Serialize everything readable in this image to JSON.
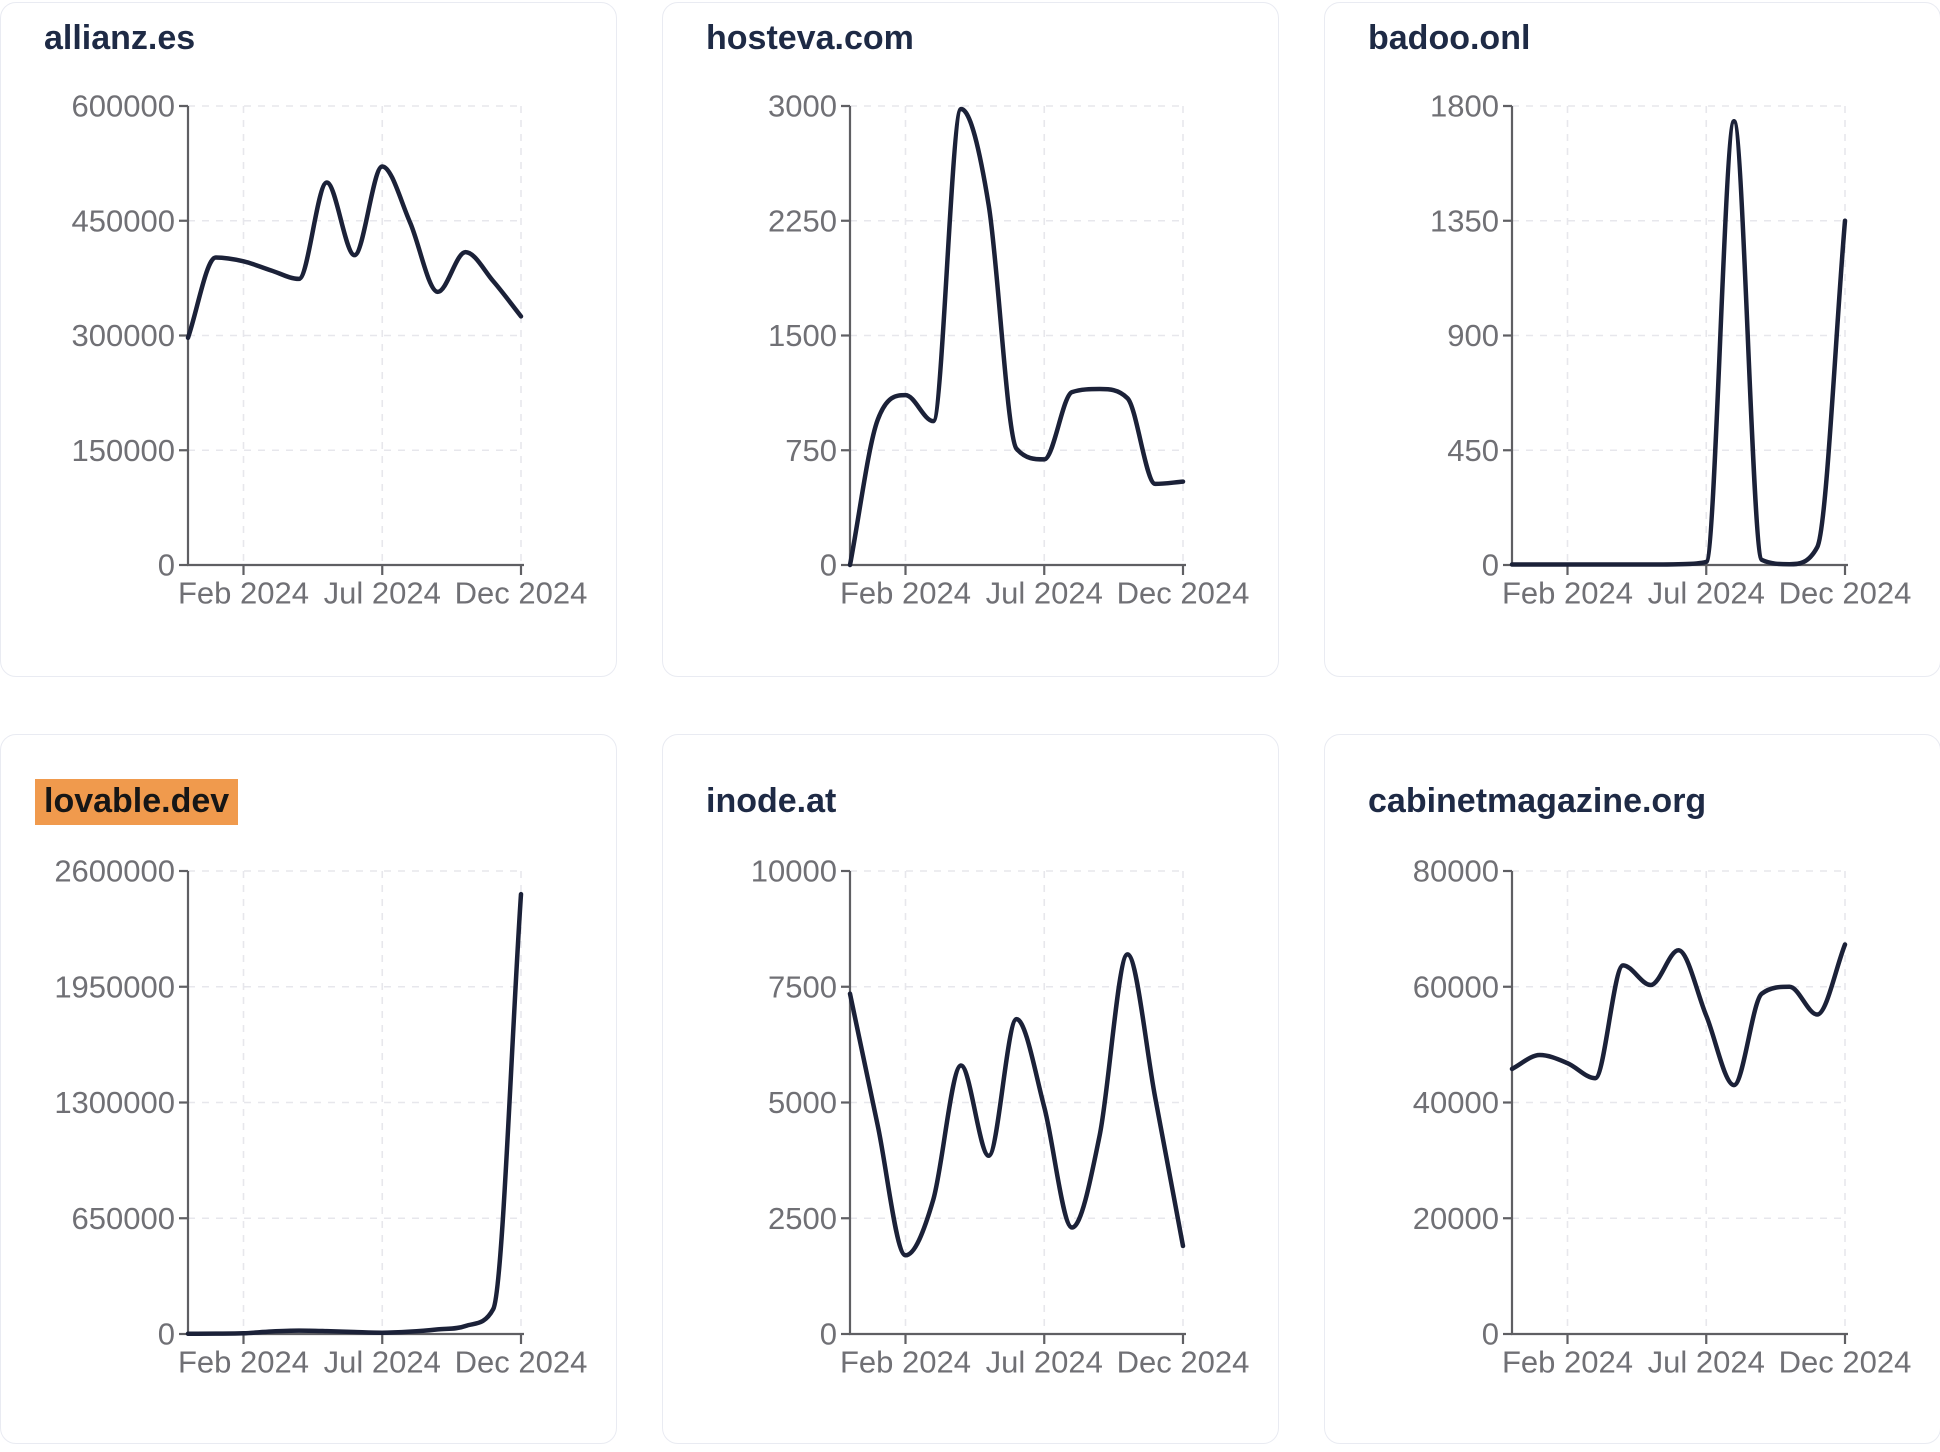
{
  "theme": {
    "background": "#ffffff",
    "card_border": "#e9ebf2",
    "title_color": "#1e2a45",
    "line_color": "#1b2138",
    "axis_color": "#5f5f63",
    "tick_label_color": "#707075",
    "grid_color": "#e7e7ec",
    "highlight_bg": "#f09a4d",
    "highlight_text": "#161616"
  },
  "chart_data": [
    {
      "type": "line",
      "title": "allianz.es",
      "highlighted": false,
      "x_months": [
        "Dec 2023",
        "Jan 2024",
        "Feb 2024",
        "Mar 2024",
        "Apr 2024",
        "May 2024",
        "Jun 2024",
        "Jul 2024",
        "Aug 2024",
        "Sep 2024",
        "Oct 2024",
        "Nov 2024",
        "Dec 2024"
      ],
      "values": [
        297000,
        402000,
        397000,
        385000,
        374000,
        500000,
        405000,
        521000,
        448000,
        357000,
        409000,
        371000,
        325000
      ],
      "ylim": [
        0,
        600000
      ],
      "y_ticks": [
        0,
        150000,
        300000,
        450000,
        600000
      ],
      "x_ticks": [
        {
          "label": "Feb 2024",
          "month_index": 2
        },
        {
          "label": "Jul 2024",
          "month_index": 7
        },
        {
          "label": "Dec 2024",
          "month_index": 12
        }
      ],
      "grid": "dashed",
      "legend": "none"
    },
    {
      "type": "line",
      "title": "hosteva.com",
      "highlighted": false,
      "x_months": [
        "Dec 2023",
        "Jan 2024",
        "Feb 2024",
        "Mar 2024",
        "Apr 2024",
        "May 2024",
        "Jun 2024",
        "Jul 2024",
        "Aug 2024",
        "Sep 2024",
        "Oct 2024",
        "Nov 2024",
        "Dec 2024"
      ],
      "values": [
        0,
        950,
        1110,
        940,
        2980,
        2350,
        760,
        690,
        1130,
        1150,
        1090,
        530,
        545
      ],
      "ylim": [
        0,
        3000
      ],
      "y_ticks": [
        0,
        750,
        1500,
        2250,
        3000
      ],
      "x_ticks": [
        {
          "label": "Feb 2024",
          "month_index": 2
        },
        {
          "label": "Jul 2024",
          "month_index": 7
        },
        {
          "label": "Dec 2024",
          "month_index": 12
        }
      ],
      "grid": "dashed",
      "legend": "none"
    },
    {
      "type": "line",
      "title": "badoo.onl",
      "highlighted": false,
      "x_months": [
        "Dec 2023",
        "Jan 2024",
        "Feb 2024",
        "Mar 2024",
        "Apr 2024",
        "May 2024",
        "Jun 2024",
        "Jul 2024",
        "Aug 2024",
        "Sep 2024",
        "Oct 2024",
        "Nov 2024",
        "Dec 2024"
      ],
      "values": [
        2,
        2,
        2,
        2,
        2,
        2,
        3,
        12,
        1740,
        20,
        3,
        70,
        1350
      ],
      "ylim": [
        0,
        1800
      ],
      "y_ticks": [
        0,
        450,
        900,
        1350,
        1800
      ],
      "x_ticks": [
        {
          "label": "Feb 2024",
          "month_index": 2
        },
        {
          "label": "Jul 2024",
          "month_index": 7
        },
        {
          "label": "Dec 2024",
          "month_index": 12
        }
      ],
      "grid": "dashed",
      "legend": "none"
    },
    {
      "type": "line",
      "title": "lovable.dev",
      "highlighted": true,
      "x_months": [
        "Dec 2023",
        "Jan 2024",
        "Feb 2024",
        "Mar 2024",
        "Apr 2024",
        "May 2024",
        "Jun 2024",
        "Jul 2024",
        "Aug 2024",
        "Sep 2024",
        "Oct 2024",
        "Nov 2024",
        "Dec 2024"
      ],
      "values": [
        1500,
        2000,
        4000,
        14000,
        19000,
        16000,
        11000,
        7000,
        13000,
        26000,
        45000,
        140000,
        2470000
      ],
      "ylim": [
        0,
        2600000
      ],
      "y_ticks": [
        0,
        650000,
        1300000,
        1950000,
        2600000
      ],
      "x_ticks": [
        {
          "label": "Feb 2024",
          "month_index": 2
        },
        {
          "label": "Jul 2024",
          "month_index": 7
        },
        {
          "label": "Dec 2024",
          "month_index": 12
        }
      ],
      "grid": "dashed",
      "legend": "none"
    },
    {
      "type": "line",
      "title": "inode.at",
      "highlighted": false,
      "x_months": [
        "Dec 2023",
        "Jan 2024",
        "Feb 2024",
        "Mar 2024",
        "Apr 2024",
        "May 2024",
        "Jun 2024",
        "Jul 2024",
        "Aug 2024",
        "Sep 2024",
        "Oct 2024",
        "Nov 2024",
        "Dec 2024"
      ],
      "values": [
        7350,
        4500,
        1700,
        2900,
        5800,
        3850,
        6800,
        4900,
        2300,
        4300,
        8200,
        5100,
        1900
      ],
      "ylim": [
        0,
        10000
      ],
      "y_ticks": [
        0,
        2500,
        5000,
        7500,
        10000
      ],
      "x_ticks": [
        {
          "label": "Feb 2024",
          "month_index": 2
        },
        {
          "label": "Jul 2024",
          "month_index": 7
        },
        {
          "label": "Dec 2024",
          "month_index": 12
        }
      ],
      "grid": "dashed",
      "legend": "none"
    },
    {
      "type": "line",
      "title": "cabinetmagazine.org",
      "highlighted": false,
      "x_months": [
        "Dec 2023",
        "Jan 2024",
        "Feb 2024",
        "Mar 2024",
        "Apr 2024",
        "May 2024",
        "Jun 2024",
        "Jul 2024",
        "Aug 2024",
        "Sep 2024",
        "Oct 2024",
        "Nov 2024",
        "Dec 2024"
      ],
      "values": [
        45800,
        48200,
        46800,
        44200,
        63700,
        60300,
        66300,
        55000,
        43000,
        58800,
        60000,
        55200,
        67300
      ],
      "ylim": [
        0,
        80000
      ],
      "y_ticks": [
        0,
        20000,
        40000,
        60000,
        80000
      ],
      "x_ticks": [
        {
          "label": "Feb 2024",
          "month_index": 2
        },
        {
          "label": "Jul 2024",
          "month_index": 7
        },
        {
          "label": "Dec 2024",
          "month_index": 12
        }
      ],
      "grid": "dashed",
      "legend": "none"
    }
  ]
}
